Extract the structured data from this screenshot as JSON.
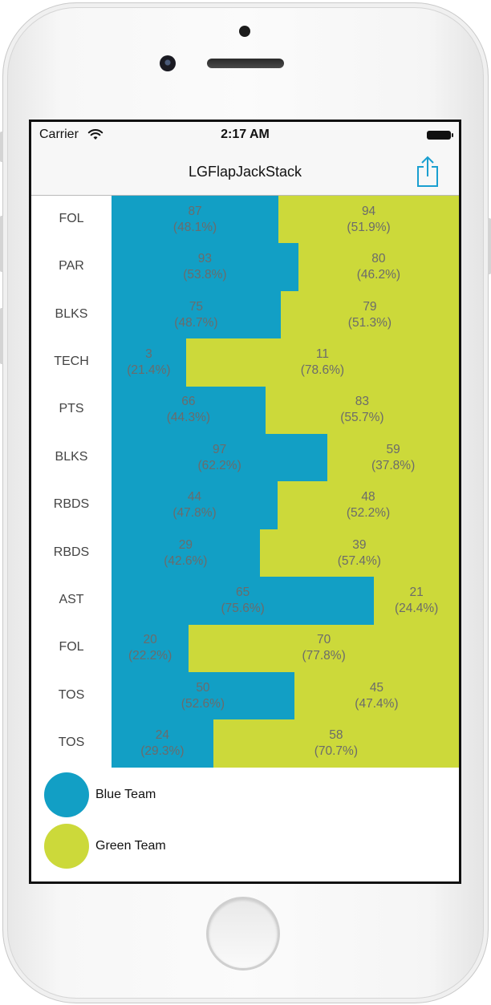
{
  "status_bar": {
    "carrier": "Carrier",
    "time": "2:17 AM"
  },
  "nav_bar": {
    "title": "LGFlapJackStack",
    "share_icon": "share-icon"
  },
  "colors": {
    "blue_team": "#129fc5",
    "green_team": "#ccd93a"
  },
  "chart_data": {
    "type": "bar",
    "orientation": "horizontal",
    "stacked": "100%",
    "categories": [
      "FOL",
      "PAR",
      "BLKS",
      "TECH",
      "PTS",
      "BLKS",
      "RBDS",
      "RBDS",
      "AST",
      "FOL",
      "TOS",
      "TOS"
    ],
    "series": [
      {
        "name": "Blue Team",
        "values": [
          87,
          93,
          75,
          3,
          66,
          97,
          44,
          29,
          65,
          20,
          50,
          24
        ],
        "percent_labels": [
          "(48.1%)",
          "(53.8%)",
          "(48.7%)",
          "(21.4%)",
          "(44.3%)",
          "(62.2%)",
          "(47.8%)",
          "(42.6%)",
          "(75.6%)",
          "(22.2%)",
          "(52.6%)",
          "(29.3%)"
        ]
      },
      {
        "name": "Green Team",
        "values": [
          94,
          80,
          79,
          11,
          83,
          59,
          48,
          39,
          21,
          70,
          45,
          58
        ],
        "percent_labels": [
          "(51.9%)",
          "(46.2%)",
          "(51.3%)",
          "(78.6%)",
          "(55.7%)",
          "(37.8%)",
          "(52.2%)",
          "(57.4%)",
          "(24.4%)",
          "(77.8%)",
          "(47.4%)",
          "(70.7%)"
        ]
      }
    ],
    "legend": "bottom"
  }
}
